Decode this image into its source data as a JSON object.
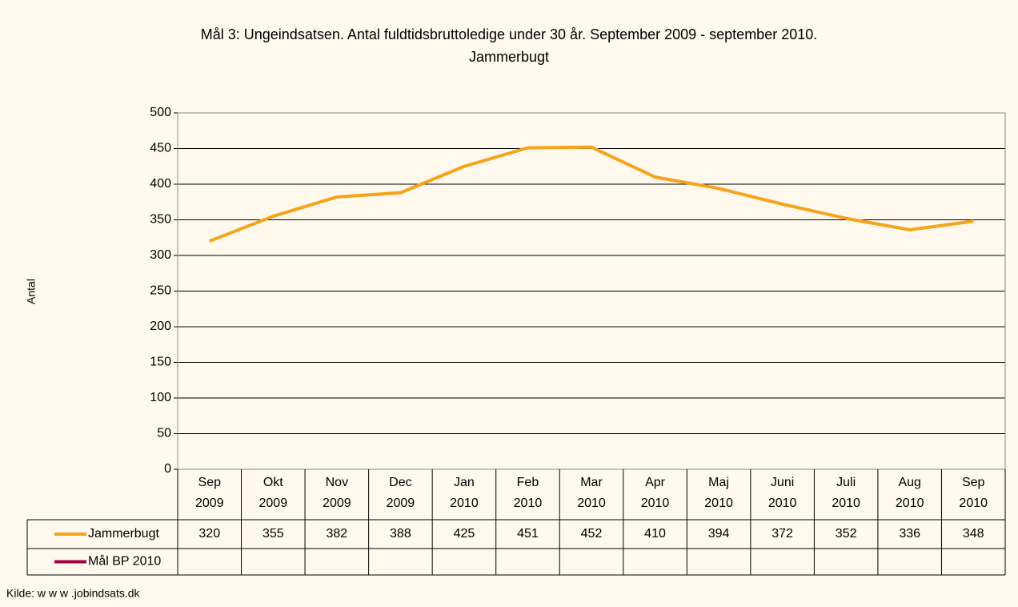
{
  "chart_data": {
    "type": "line",
    "title": "Mål 3: Ungeindsatsen. Antal fuldtidsbruttoledige under 30 år. September 2009 - september 2010.",
    "subtitle": "Jammerbugt",
    "y_label": "Antal",
    "source": "Kilde: w w w .jobindsats.dk",
    "categories": [
      "Sep 2009",
      "Okt 2009",
      "Nov 2009",
      "Dec 2009",
      "Jan 2010",
      "Feb 2010",
      "Mar 2010",
      "Apr 2010",
      "Maj 2010",
      "Juni 2010",
      "Juli 2010",
      "Aug 2010",
      "Sep 2010"
    ],
    "series": [
      {
        "name": "Jammerbugt",
        "color": "#f5a31a",
        "values": [
          320,
          355,
          382,
          388,
          425,
          451,
          452,
          410,
          394,
          372,
          352,
          336,
          348
        ]
      },
      {
        "name": "Mål BP 2010",
        "color": "#a3003c",
        "values": [
          null,
          null,
          null,
          null,
          null,
          null,
          null,
          null,
          null,
          null,
          null,
          null,
          null
        ]
      }
    ],
    "ylim": [
      0,
      500
    ],
    "yticks": [
      0,
      50,
      100,
      150,
      200,
      250,
      300,
      350,
      400,
      450,
      500
    ],
    "grid": true
  }
}
